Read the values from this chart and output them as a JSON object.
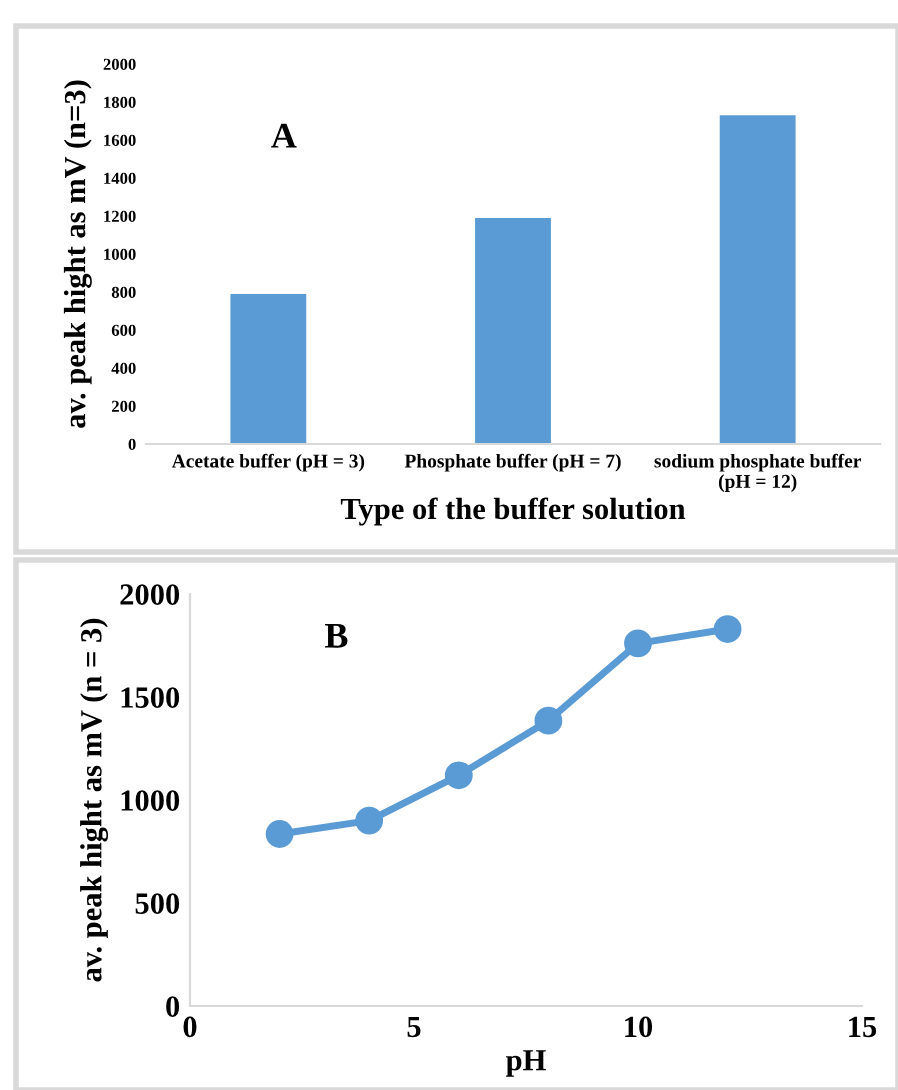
{
  "chart_data": [
    {
      "type": "bar",
      "categories": [
        "Acetate buffer (pH = 3)",
        "Phosphate buffer (pH = 7)",
        "sodium phosphate buffer\n(pH = 12)"
      ],
      "values": [
        790,
        1190,
        1730
      ],
      "color": "#5b9bd5",
      "xlabel": "Type of the buffer solution",
      "ylabel": "av. peak hight as mV (n=3)",
      "ylim": [
        0,
        2000
      ],
      "yticks": [
        0,
        200,
        400,
        600,
        800,
        1000,
        1200,
        1400,
        1600,
        1800,
        2000
      ],
      "annotations": [
        "A"
      ],
      "grid": false,
      "legend": false
    },
    {
      "type": "line",
      "x": [
        2,
        4,
        6,
        8,
        10,
        12
      ],
      "values": [
        835,
        900,
        1120,
        1385,
        1760,
        1830
      ],
      "color": "#5b9bd5",
      "marker": "circle",
      "line_style": "solid",
      "xlabel": "pH",
      "ylabel": "av. peak hight as mV (n = 3)",
      "xlim": [
        0,
        15
      ],
      "xticks": [
        0,
        5,
        10,
        15
      ],
      "ylim": [
        0,
        2000
      ],
      "yticks": [
        0,
        500,
        1000,
        1500,
        2000
      ],
      "annotations": [
        "B"
      ],
      "grid": false,
      "legend": false
    }
  ]
}
